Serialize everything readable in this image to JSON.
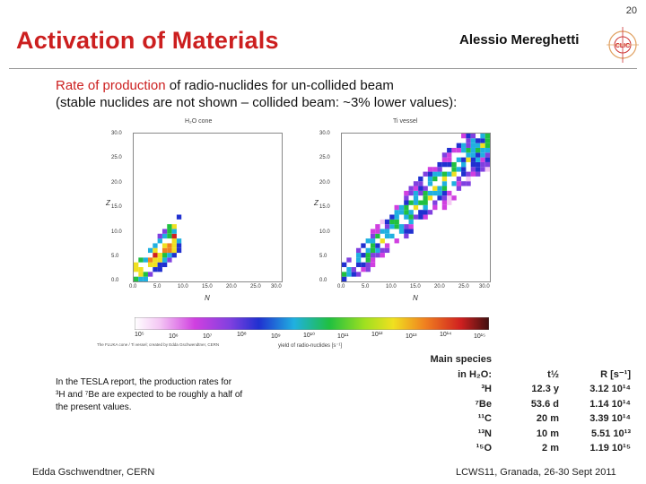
{
  "page_number": "20",
  "title": "Activation of Materials",
  "author": "Alessio Mereghetti",
  "logo_text": "CLIC",
  "intro": {
    "line1_highlight": "Rate of production",
    "line1_rest": " of radio-nuclides for un-collided beam",
    "line2": "(stable nuclides are not shown – collided beam: ~3% lower values):"
  },
  "plots": [
    {
      "title": "H₂O cone",
      "xlabel": "N",
      "ylabel": "Z",
      "xticks": [
        "0.0",
        "5.0",
        "10.0",
        "15.0",
        "20.0",
        "25.0",
        "30.0"
      ],
      "yticks": [
        "30.0",
        "25.0",
        "20.0",
        "15.0",
        "10.0",
        "5.0",
        "0.0"
      ]
    },
    {
      "title": "Ti vessel",
      "xlabel": "N",
      "ylabel": "Z",
      "xticks": [
        "0.0",
        "5.0",
        "10.0",
        "15.0",
        "20.0",
        "25.0",
        "30.0"
      ],
      "yticks": [
        "30.0",
        "25.0",
        "20.0",
        "15.0",
        "10.0",
        "5.0",
        "0.0"
      ]
    }
  ],
  "colorbar": {
    "ticks": [
      "10⁵",
      "10⁶",
      "10⁷",
      "10⁸",
      "10⁹",
      "10¹⁰",
      "10¹¹",
      "10¹²",
      "10¹³",
      "10¹⁴",
      "10¹⁵"
    ],
    "label": "yield of radio-nuclides [s⁻¹]",
    "note": "The FLUKA cone / Ti vessel; created by Edda Gschwendtner, CERN"
  },
  "note": {
    "line1": "In the TESLA report, the production rates for",
    "line2": "³H and ⁷Be are expected to be roughly a half of",
    "line3": "the present values."
  },
  "species": {
    "header1": "Main species",
    "header2": "in H₂O:",
    "t_header": "t½",
    "r_header": "R [s⁻¹]",
    "rows": [
      {
        "nuclide": "³H",
        "t": "12.3 y",
        "r": "3.12 10¹⁴"
      },
      {
        "nuclide": "⁷Be",
        "t": "53.6 d",
        "r": "1.14 10¹⁴"
      },
      {
        "nuclide": "¹¹C",
        "t": "20 m",
        "r": "3.39 10¹⁴"
      },
      {
        "nuclide": "¹³N",
        "t": "10 m",
        "r": "5.51 10¹³"
      },
      {
        "nuclide": "¹⁵O",
        "t": "2 m",
        "r": "1.19 10¹⁵"
      }
    ]
  },
  "footer_left": "Edda Gschwendtner, CERN",
  "footer_right": "LCWS11, Granada, 26-30 Sept 2011",
  "colors": {
    "title": "#cc1f1f",
    "highlight": "#cc1f1f"
  }
}
